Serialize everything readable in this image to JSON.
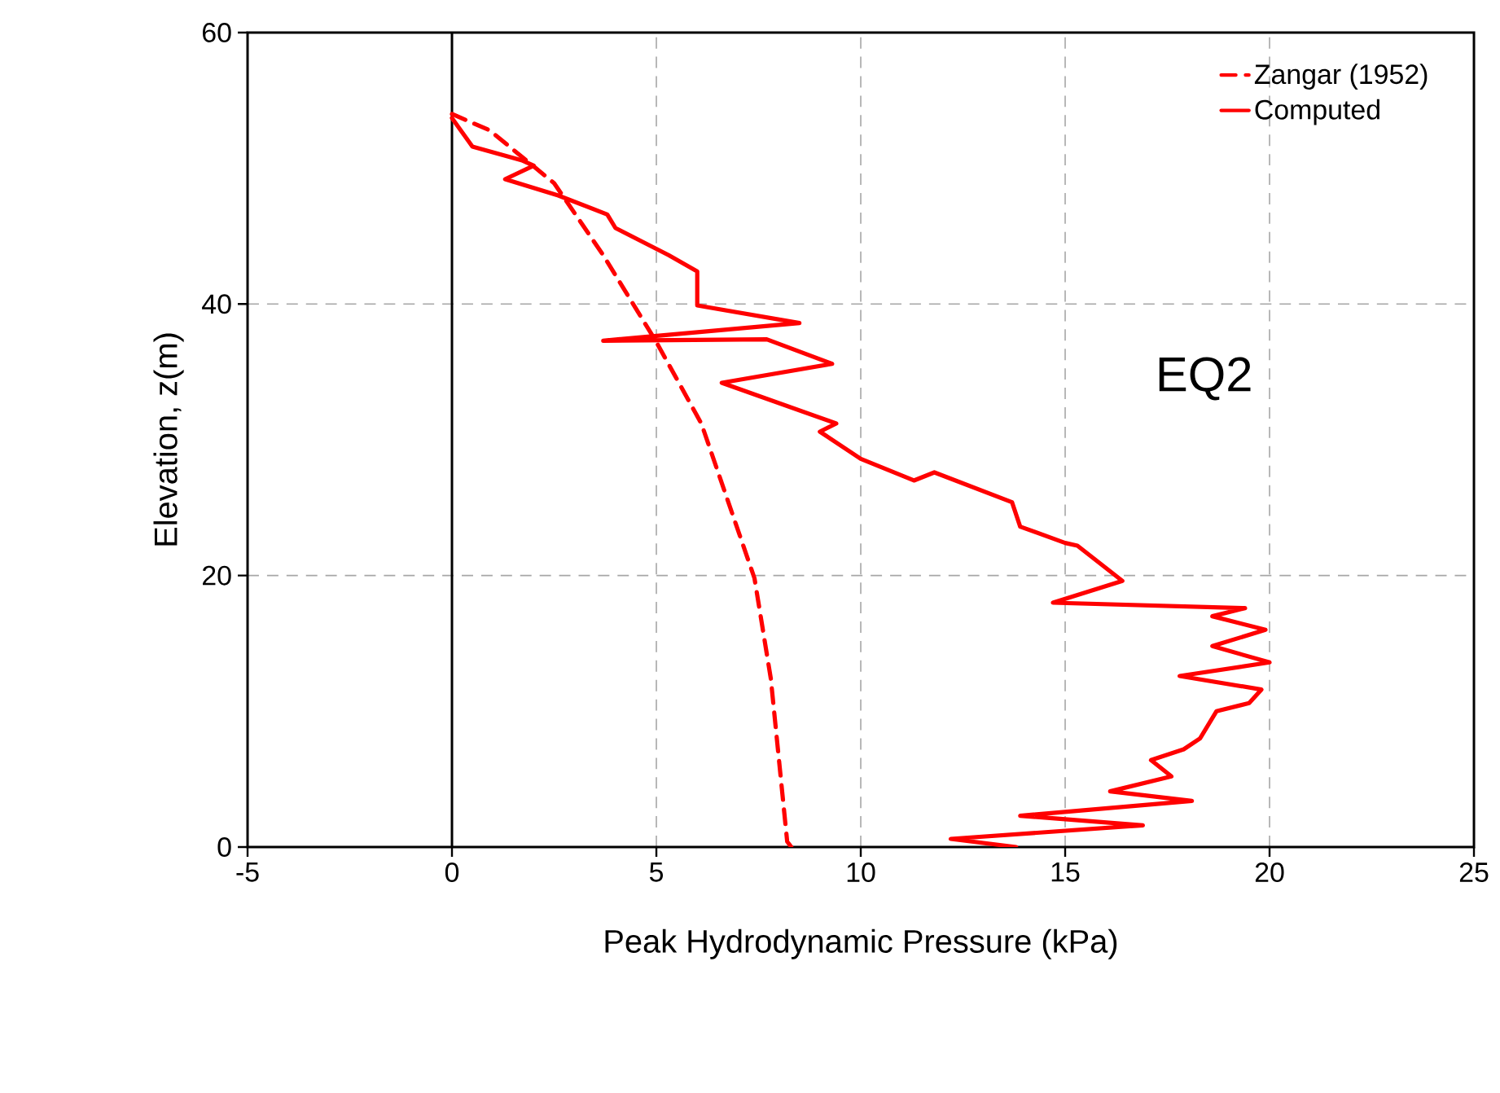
{
  "chart_data": {
    "type": "line",
    "xlabel": "Peak Hydrodynamic Pressure (kPa)",
    "ylabel": "Elevation, z(m)",
    "annotations": [
      "EQ2"
    ],
    "xlim": [
      -5,
      25
    ],
    "ylim": [
      0,
      60
    ],
    "xticks": [
      -5,
      0,
      5,
      10,
      15,
      20,
      25
    ],
    "yticks": [
      0,
      20,
      40,
      60
    ],
    "grid": true,
    "legend": "top right",
    "marker": "none",
    "ref_lines": [
      {
        "axis": "x",
        "value": 0,
        "color": "#000000",
        "line_style": "solid"
      }
    ],
    "series": [
      {
        "name": "Zangar (1952)",
        "color": "#ff0000",
        "line_style": "dashed",
        "x": [
          0,
          0.92,
          2.5,
          3.7,
          5.0,
          6.1,
          7.4,
          7.8,
          8.2,
          8.3
        ],
        "values": [
          54,
          52.8,
          48.9,
          43.6,
          37.2,
          31.2,
          19.8,
          12.4,
          0.4,
          0
        ]
      },
      {
        "name": "Computed",
        "color": "#ff0000",
        "line_style": "solid",
        "x": [
          13.8,
          12.2,
          16.9,
          13.9,
          18.1,
          16.1,
          17.6,
          17.1,
          17.9,
          18.3,
          18.7,
          19.5,
          19.8,
          17.8,
          20.0,
          18.6,
          19.9,
          18.6,
          19.4,
          14.7,
          16.4,
          15.3,
          15.0,
          13.9,
          13.7,
          11.8,
          11.3,
          10.0,
          9.0,
          9.4,
          6.6,
          9.3,
          7.7,
          3.7,
          8.5,
          6.0,
          6.0,
          5.3,
          4.0,
          3.8,
          2.6,
          1.3,
          2.0,
          1.7,
          0.5,
          0.0
        ],
        "values": [
          0,
          0.6,
          1.6,
          2.3,
          3.4,
          4.1,
          5.2,
          6.4,
          7.2,
          8.0,
          10.0,
          10.6,
          11.6,
          12.6,
          13.6,
          14.8,
          16.0,
          17.0,
          17.6,
          18.0,
          19.6,
          22.2,
          22.4,
          23.6,
          25.4,
          27.6,
          27.0,
          28.6,
          30.6,
          31.2,
          34.2,
          35.6,
          37.4,
          37.3,
          38.6,
          39.9,
          42.4,
          43.6,
          45.6,
          46.6,
          48.0,
          49.2,
          50.2,
          50.6,
          51.6,
          53.7
        ]
      }
    ]
  }
}
